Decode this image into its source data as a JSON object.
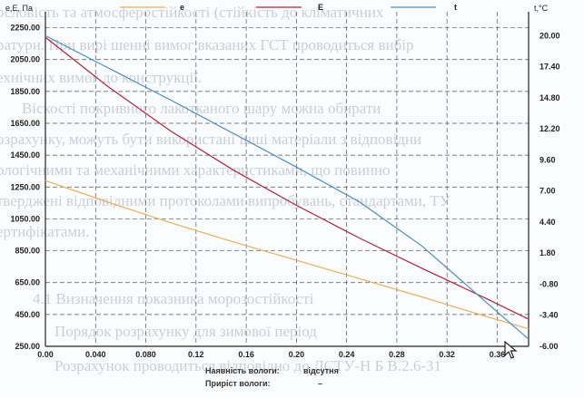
{
  "background_text": [
    "ословість та атмосферостійкості  (стійкість до кліматичних",
    "ратури. При вирі шенні вимог вказаних ГСТ проводиться вибір",
    "ехнічних вимог до конструкції.",
    "Віскості покривного лакотканого шару можна обирати",
    "озрахунку, можуть бути використані інші матеріали з відповідни",
    "ологічними та механічними характеристиками, що повинно",
    "тверджені відповідними протоколами випробувань, стандартами, ТУ",
    "ертифікатами.",
    "4.1 Визначення показника морозостійкості",
    "Порядок розрахунку для зимової період",
    "Розрахунок проводиться відповідно до ДСТУ-Н Б В.2.6-31"
  ],
  "chart_data": {
    "type": "line",
    "y_left_label": "e,E, Па",
    "y_right_label": "t,°C",
    "x_ticks": [
      "0.00",
      "0.040",
      "0.080",
      "0.12",
      "0.16",
      "0.20",
      "0.24",
      "0.28",
      "0.32",
      "0.36"
    ],
    "y_left_ticks": [
      "2250.00",
      "2050.00",
      "1850.00",
      "1650.00",
      "1450.00",
      "1250.00",
      "1050.00",
      "850.00",
      "650.00",
      "450.00",
      "250.00"
    ],
    "y_right_ticks": [
      "20.00",
      "17.40",
      "14.80",
      "12.20",
      "9.60",
      "7.00",
      "4.40",
      "1.80",
      "-0.80",
      "-3.40",
      "-6.00"
    ],
    "xlim": [
      0,
      0.385
    ],
    "ylim_left": [
      250,
      2350
    ],
    "ylim_right": [
      -6.0,
      22.0
    ],
    "grid": true,
    "legend_position": "top",
    "series": [
      {
        "name": "e",
        "axis": "left",
        "color": "#e8b060",
        "x": [
          0.0,
          0.05,
          0.1,
          0.15,
          0.2,
          0.25,
          0.3,
          0.35,
          0.385
        ],
        "y": [
          1290,
          1155,
          1025,
          905,
          790,
          675,
          560,
          440,
          360
        ]
      },
      {
        "name": "E",
        "axis": "left",
        "color": "#b0253a",
        "x": [
          0.0,
          0.05,
          0.1,
          0.15,
          0.2,
          0.25,
          0.3,
          0.35,
          0.385
        ],
        "y": [
          2190,
          1880,
          1600,
          1355,
          1135,
          930,
          740,
          555,
          420
        ]
      },
      {
        "name": "t",
        "axis": "right",
        "color": "#4a8ec4",
        "x": [
          0.0,
          0.05,
          0.1,
          0.15,
          0.2,
          0.25,
          0.3,
          0.35,
          0.385
        ],
        "y": [
          20.0,
          17.3,
          14.6,
          11.8,
          9.0,
          6.1,
          2.4,
          -2.2,
          -5.4
        ]
      }
    ]
  },
  "footer": {
    "moisture_presence_label": "Наявність вологи:",
    "moisture_presence_value": "відсутня",
    "moisture_increase_label": "Приріст вологи:",
    "moisture_increase_value": "–"
  }
}
